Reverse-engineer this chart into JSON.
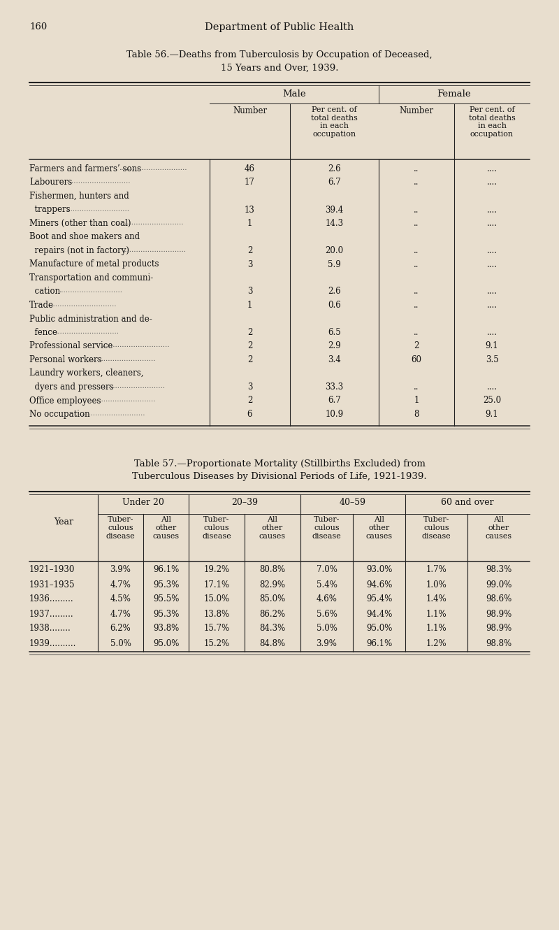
{
  "bg_color": "#e8dece",
  "text_color": "#1a1a1a",
  "page_number": "160",
  "page_header": "Department of Public Health",
  "table56_title_line1": "Table 56.—Deaths from Tuberculosis by Occupation of Deceased,",
  "table56_title_line2": "15 Years and Over, 1939.",
  "table56_rows": [
    {
      "occ1": "Farmers and farmers’ sons",
      "occ2": "",
      "dotted": true,
      "m_num": "46",
      "m_pct": "2.6",
      "f_num": "..",
      "f_pct": "...."
    },
    {
      "occ1": "Labourers",
      "occ2": "",
      "dotted": true,
      "m_num": "17",
      "m_pct": "6.7",
      "f_num": "..",
      "f_pct": "...."
    },
    {
      "occ1": "Fishermen, hunters and",
      "occ2": "  trappers",
      "dotted": true,
      "m_num": "13",
      "m_pct": "39.4",
      "f_num": "..",
      "f_pct": "...."
    },
    {
      "occ1": "Miners (other than coal)",
      "occ2": "",
      "dotted": true,
      "m_num": "1",
      "m_pct": "14.3",
      "f_num": "..",
      "f_pct": "...."
    },
    {
      "occ1": "Boot and shoe makers and",
      "occ2": "  repairs (not in factory)",
      "dotted": true,
      "m_num": "2",
      "m_pct": "20.0",
      "f_num": "..",
      "f_pct": "...."
    },
    {
      "occ1": "Manufacture of metal products",
      "occ2": "",
      "dotted": false,
      "m_num": "3",
      "m_pct": "5.9",
      "f_num": "..",
      "f_pct": "...."
    },
    {
      "occ1": "Transportation and communi-",
      "occ2": "  cation",
      "dotted": true,
      "m_num": "3",
      "m_pct": "2.6",
      "f_num": "..",
      "f_pct": "...."
    },
    {
      "occ1": "Trade",
      "occ2": "",
      "dotted": true,
      "m_num": "1",
      "m_pct": "0.6",
      "f_num": "..",
      "f_pct": "...."
    },
    {
      "occ1": "Public administration and de-",
      "occ2": "  fence",
      "dotted": true,
      "m_num": "2",
      "m_pct": "6.5",
      "f_num": "..",
      "f_pct": "...."
    },
    {
      "occ1": "Professional service",
      "occ2": "",
      "dotted": true,
      "m_num": "2",
      "m_pct": "2.9",
      "f_num": "2",
      "f_pct": "9.1"
    },
    {
      "occ1": "Personal workers",
      "occ2": "",
      "dotted": true,
      "m_num": "2",
      "m_pct": "3.4",
      "f_num": "60",
      "f_pct": "3.5"
    },
    {
      "occ1": "Laundry workers, cleaners,",
      "occ2": "  dyers and pressers",
      "dotted": true,
      "m_num": "3",
      "m_pct": "33.3",
      "f_num": "..",
      "f_pct": "...."
    },
    {
      "occ1": "Office employees",
      "occ2": "",
      "dotted": true,
      "m_num": "2",
      "m_pct": "6.7",
      "f_num": "1",
      "f_pct": "25.0"
    },
    {
      "occ1": "No occupation",
      "occ2": "",
      "dotted": true,
      "m_num": "6",
      "m_pct": "10.9",
      "f_num": "8",
      "f_pct": "9.1"
    }
  ],
  "table57_title_line1": "Table 57.—Proportionate Mortality (Stillbirths Excluded) from",
  "table57_title_line2": "Tuberculous Diseases by Divisional Periods of Life, 1921-1939.",
  "table57_age_groups": [
    "Under 20",
    "20–39",
    "40–59",
    "60 and over"
  ],
  "table57_sub_headers": [
    "Tuber-\nculous\ndisease",
    "All\nother\ncauses"
  ],
  "table57_years": [
    "1921–1930",
    "1931–1935",
    "1936",
    "1937",
    "1938",
    "1939"
  ],
  "table57_year_suffix": [
    "",
    "",
    ".........",
    ".........",
    "........",
    ".........."
  ],
  "table57_data": [
    [
      "3.9%",
      "96.1%",
      "19.2%",
      "80.8%",
      "7.0%",
      "93.0%",
      "1.7%",
      "98.3%"
    ],
    [
      "4.7%",
      "95.3%",
      "17.1%",
      "82.9%",
      "5.4%",
      "94.6%",
      "1.0%",
      "99.0%"
    ],
    [
      "4.5%",
      "95.5%",
      "15.0%",
      "85.0%",
      "4.6%",
      "95.4%",
      "1.4%",
      "98.6%"
    ],
    [
      "4.7%",
      "95.3%",
      "13.8%",
      "86.2%",
      "5.6%",
      "94.4%",
      "1.1%",
      "98.9%"
    ],
    [
      "6.2%",
      "93.8%",
      "15.7%",
      "84.3%",
      "5.0%",
      "95.0%",
      "1.1%",
      "98.9%"
    ],
    [
      "5.0%",
      "95.0%",
      "15.2%",
      "84.8%",
      "3.9%",
      "96.1%",
      "1.2%",
      "98.8%"
    ]
  ]
}
